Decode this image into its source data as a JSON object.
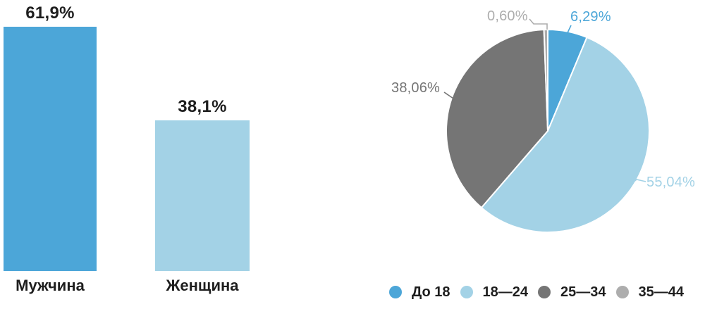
{
  "page": {
    "background": "#ffffff",
    "text_color": "#1e1e1e"
  },
  "chart_data": [
    {
      "type": "bar",
      "categories": [
        "Мужчина",
        "Женщина"
      ],
      "values": [
        61.9,
        38.1
      ],
      "value_labels": [
        "61,9%",
        "38,1%"
      ],
      "colors": [
        "#4CA6D8",
        "#A3D2E6"
      ],
      "unit": "%",
      "ylim": [
        0,
        65
      ],
      "grid": false,
      "axis_lines": false,
      "value_label_position": "above-bar",
      "category_label_position": "below-bar"
    },
    {
      "type": "pie",
      "start_angle_deg": 0,
      "direction": "clockwise",
      "legend_position": "bottom",
      "slices": [
        {
          "label": "До 18",
          "value": 6.29,
          "display": "6,29%",
          "color": "#4CA6D8"
        },
        {
          "label": "18—24",
          "value": 55.04,
          "display": "55,04%",
          "color": "#A3D2E6"
        },
        {
          "label": "25—34",
          "value": 38.06,
          "display": "38,06%",
          "color": "#757575"
        },
        {
          "label": "35—44",
          "value": 0.6,
          "display": "0,60%",
          "color": "#ADADAD"
        }
      ]
    }
  ]
}
